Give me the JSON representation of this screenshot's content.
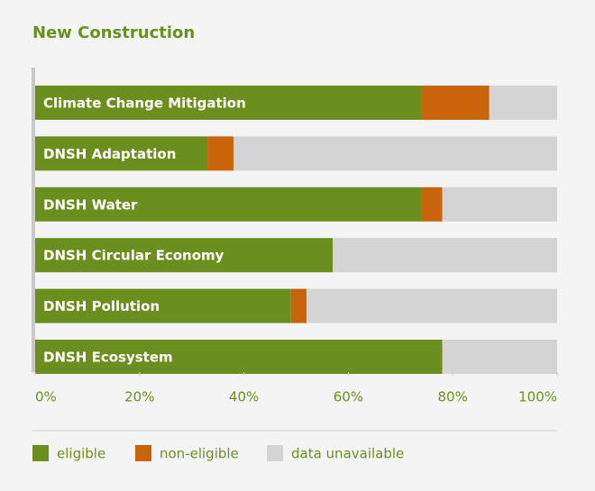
{
  "chart_data": {
    "type": "stacked-barh",
    "title": "New Construction",
    "categories": [
      "Climate Change Mitigation",
      "DNSH Adaptation",
      "DNSH Water",
      "DNSH Circular Economy",
      "DNSH Pollution",
      "DNSH Ecosystem"
    ],
    "series": [
      {
        "name": "eligible",
        "color": "#6a8f1e",
        "values": [
          74,
          33,
          74,
          57,
          49,
          78
        ]
      },
      {
        "name": "non-eligible",
        "color": "#c8640a",
        "values": [
          13,
          5,
          4,
          0,
          3,
          0
        ]
      },
      {
        "name": "data unavailable",
        "color": "#d4d4d4",
        "values": [
          13,
          62,
          22,
          43,
          48,
          22
        ]
      }
    ],
    "xlim": [
      0,
      100
    ],
    "xticks": [
      {
        "value": 0,
        "label": "0%"
      },
      {
        "value": 20,
        "label": "20%"
      },
      {
        "value": 40,
        "label": "40%"
      },
      {
        "value": 60,
        "label": "60%"
      },
      {
        "value": 80,
        "label": "80%"
      },
      {
        "value": 100,
        "label": "100%"
      }
    ],
    "legend": "bottom"
  }
}
